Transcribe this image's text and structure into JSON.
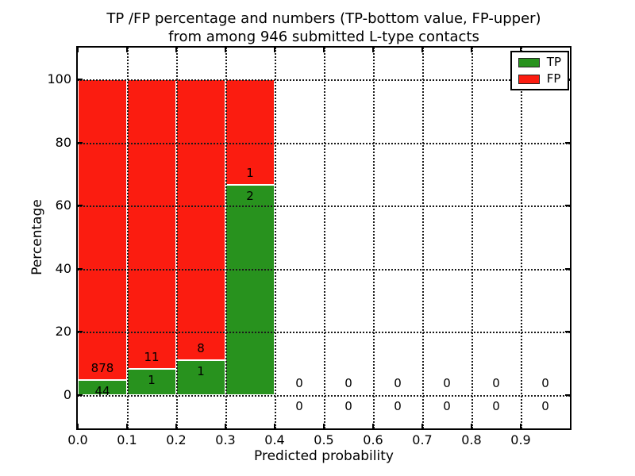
{
  "chart_data": {
    "type": "bar",
    "stacked": true,
    "title_line1": "TP /FP percentage and numbers (TP-bottom value, FP-upper)",
    "title_line2": "from among 946 submitted L-type contacts",
    "xlabel": "Predicted probability",
    "ylabel": "Percentage",
    "xlim": [
      0.0,
      1.0
    ],
    "ylim": [
      -11,
      110
    ],
    "grid": true,
    "x_ticks": [
      {
        "value": 0.0,
        "label": "0.0"
      },
      {
        "value": 0.1,
        "label": "0.1"
      },
      {
        "value": 0.2,
        "label": "0.2"
      },
      {
        "value": 0.3,
        "label": "0.3"
      },
      {
        "value": 0.4,
        "label": "0.4"
      },
      {
        "value": 0.5,
        "label": "0.5"
      },
      {
        "value": 0.6,
        "label": "0.6"
      },
      {
        "value": 0.7,
        "label": "0.7"
      },
      {
        "value": 0.8,
        "label": "0.8"
      },
      {
        "value": 0.9,
        "label": "0.9"
      }
    ],
    "y_ticks": [
      {
        "value": 0,
        "label": "0"
      },
      {
        "value": 20,
        "label": "20"
      },
      {
        "value": 40,
        "label": "40"
      },
      {
        "value": 60,
        "label": "60"
      },
      {
        "value": 80,
        "label": "80"
      },
      {
        "value": 100,
        "label": "100"
      }
    ],
    "colors": {
      "tp": "#28921e",
      "fp": "#fb1c10",
      "bar_edge": "#ffffff"
    },
    "legend": {
      "position": "upper-right",
      "entries": [
        {
          "label": "TP",
          "color": "#28921e"
        },
        {
          "label": "FP",
          "color": "#fb1c10"
        }
      ]
    },
    "total_contacts": 946,
    "bins": [
      {
        "x0": 0.0,
        "x1": 0.1,
        "tp_count": 44,
        "fp_count": 878,
        "tp_pct": 4.77,
        "fp_pct": 95.23
      },
      {
        "x0": 0.1,
        "x1": 0.2,
        "tp_count": 1,
        "fp_count": 11,
        "tp_pct": 8.33,
        "fp_pct": 91.67
      },
      {
        "x0": 0.2,
        "x1": 0.3,
        "tp_count": 1,
        "fp_count": 8,
        "tp_pct": 11.11,
        "fp_pct": 88.89
      },
      {
        "x0": 0.3,
        "x1": 0.4,
        "tp_count": 2,
        "fp_count": 1,
        "tp_pct": 66.67,
        "fp_pct": 33.33
      },
      {
        "x0": 0.4,
        "x1": 0.5,
        "tp_count": 0,
        "fp_count": 0,
        "tp_pct": 0,
        "fp_pct": 0
      },
      {
        "x0": 0.5,
        "x1": 0.6,
        "tp_count": 0,
        "fp_count": 0,
        "tp_pct": 0,
        "fp_pct": 0
      },
      {
        "x0": 0.6,
        "x1": 0.7,
        "tp_count": 0,
        "fp_count": 0,
        "tp_pct": 0,
        "fp_pct": 0
      },
      {
        "x0": 0.7,
        "x1": 0.8,
        "tp_count": 0,
        "fp_count": 0,
        "tp_pct": 0,
        "fp_pct": 0
      },
      {
        "x0": 0.8,
        "x1": 0.9,
        "tp_count": 0,
        "fp_count": 0,
        "tp_pct": 0,
        "fp_pct": 0
      },
      {
        "x0": 0.9,
        "x1": 1.0,
        "tp_count": 0,
        "fp_count": 0,
        "tp_pct": 0,
        "fp_pct": 0
      }
    ]
  }
}
